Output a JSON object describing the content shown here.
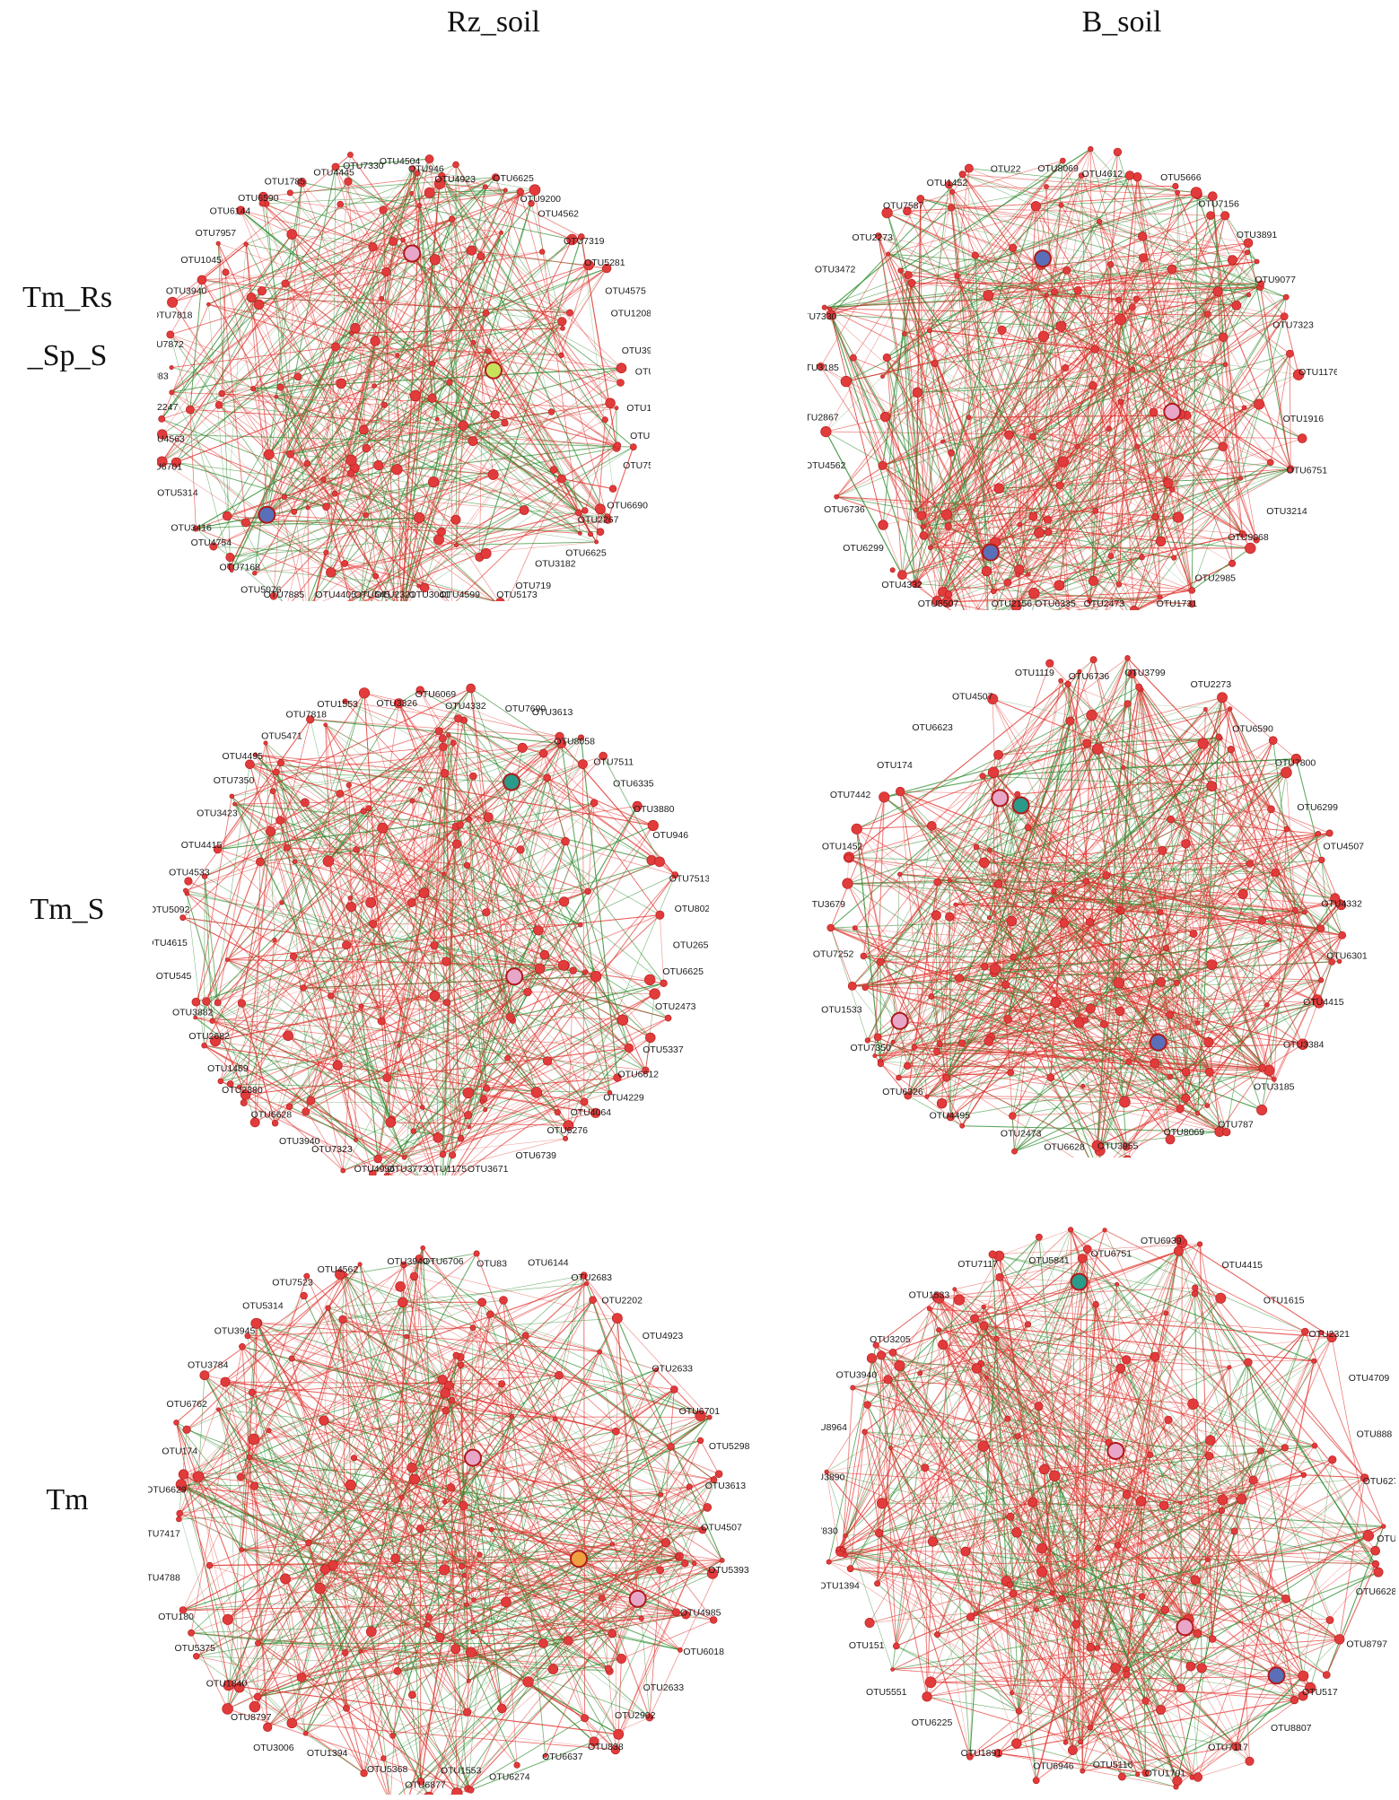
{
  "columns": [
    "Rz_soil",
    "B_soil"
  ],
  "rows": [
    {
      "lines": [
        "Tm_Rs",
        "_Sp_S"
      ]
    },
    {
      "lines": [
        "Tm_S"
      ]
    },
    {
      "lines": [
        "Tm"
      ]
    }
  ],
  "colors": {
    "positive_edge": "#e0302a",
    "negative_edge": "#2e8b2e",
    "node": "#e23b3b",
    "node_stroke": "#b01a1a",
    "hub_blue": "#5a6fb8",
    "hub_pink": "#e8a6c8",
    "hub_teal": "#2a9a8a",
    "hub_lime": "#c6e25a",
    "hub_orange": "#f0a040"
  },
  "panels": [
    {
      "row": 0,
      "col": 0,
      "seed": 11,
      "density": 0.55,
      "hubs": [
        "blue",
        "pink",
        "lime"
      ],
      "labels": [
        "OTU4504",
        "OTU946",
        "OTU4923",
        "OTU6625",
        "OTU9200",
        "OTU4562",
        "OTU7319",
        "OTU5281",
        "OTU4575",
        "OTU1208",
        "OTU3940",
        "OTU1118",
        "OTU1452",
        "OTU3418",
        "OTU7553",
        "OTU6690",
        "OTU2267",
        "OTU6625",
        "OTU3182",
        "OTU719",
        "OTU5173",
        "OTU4599",
        "OTU3041",
        "OTU2321",
        "OTU545",
        "OTU4405",
        "OTU7885",
        "OTU5076",
        "OTU7168",
        "OTU4754",
        "OTU3416",
        "OTU5314",
        "OTU6701",
        "OTU4563",
        "OTU2247",
        "OTU83",
        "OTU7872",
        "OTU7818",
        "OTU3940",
        "OTU1045",
        "OTU7957",
        "OTU6144",
        "OTU6590",
        "OTU1785",
        "OTU4445",
        "OTU7330"
      ]
    },
    {
      "row": 0,
      "col": 1,
      "seed": 23,
      "density": 0.75,
      "hubs": [
        "blue",
        "pink",
        "blue"
      ],
      "labels": [
        "OTU8069",
        "OTU4612",
        "OTU5666",
        "OTU7156",
        "OTU3891",
        "OTU9077",
        "OTU7323",
        "OTU1176",
        "OTU1916",
        "OTU6751",
        "OTU3214",
        "OTU9068",
        "OTU2985",
        "OTU1731",
        "OTU2473",
        "OTU6335",
        "OTU2156",
        "OTU5507",
        "OTU4332",
        "OTU6299",
        "OTU6736",
        "OTU4562",
        "OTU2867",
        "OTU3185",
        "OTU7330",
        "OTU3472",
        "OTU2273",
        "OTU7587",
        "OTU1452",
        "OTU22"
      ]
    },
    {
      "row": 1,
      "col": 0,
      "seed": 37,
      "density": 0.6,
      "hubs": [
        "pink",
        "teal"
      ],
      "labels": [
        "OTU6069",
        "OTU4332",
        "OTU7690",
        "OTU3613",
        "OTU8058",
        "OTU7511",
        "OTU6335",
        "OTU3880",
        "OTU946",
        "OTU7513",
        "OTU8028",
        "OTU2659",
        "OTU6625",
        "OTU2473",
        "OTU5337",
        "OTU6612",
        "OTU4229",
        "OTU4064",
        "OTU6276",
        "OTU6739",
        "OTU3671",
        "OTU1175",
        "OTU3773",
        "OTU4956",
        "OTU7323",
        "OTU3940",
        "OTU6628",
        "OTU2380",
        "OTU1459",
        "OTU2682",
        "OTU3882",
        "OTU545",
        "OTU4615",
        "OTU5092",
        "OTU4533",
        "OTU4415",
        "OTU3423",
        "OTU7350",
        "OTU4495",
        "OTU5471",
        "OTU7818",
        "OTU1553",
        "OTU3326"
      ]
    },
    {
      "row": 1,
      "col": 1,
      "seed": 53,
      "density": 0.8,
      "hubs": [
        "pink",
        "blue",
        "teal",
        "pink"
      ],
      "labels": [
        "OTU6736",
        "OTU3799",
        "OTU2273",
        "OTU6590",
        "OTU7800",
        "OTU6299",
        "OTU4507",
        "OTU4332",
        "OTU6301",
        "OTU4415",
        "OTU3384",
        "OTU3185",
        "OTU787",
        "OTU8069",
        "OTU3955",
        "OTU6628",
        "OTU2473",
        "OTU4495",
        "OTU6326",
        "OTU7350",
        "OTU1533",
        "OTU7252",
        "OTU3679",
        "OTU1452",
        "OTU7442",
        "OTU174",
        "OTU6623",
        "OTU4507",
        "OTU1119"
      ]
    },
    {
      "row": 2,
      "col": 0,
      "seed": 71,
      "density": 0.7,
      "hubs": [
        "orange",
        "pink",
        "pink"
      ],
      "labels": [
        "OTU6706",
        "OTU83",
        "OTU6144",
        "OTU2683",
        "OTU2202",
        "OTU4923",
        "OTU2633",
        "OTU6701",
        "OTU5298",
        "OTU3613",
        "OTU4507",
        "OTU5393",
        "OTU4985",
        "OTU6018",
        "OTU2633",
        "OTU2902",
        "OTU838",
        "OTU6637",
        "OTU6274",
        "OTU1553",
        "OTU6877",
        "OTU5368",
        "OTU1394",
        "OTU3006",
        "OTU8797",
        "OTU1840",
        "OTU5375",
        "OTU180",
        "OTU4788",
        "OTU7417",
        "OTU6629",
        "OTU174",
        "OTU6762",
        "OTU3784",
        "OTU3945",
        "OTU5314",
        "OTU7523",
        "OTU4562",
        "OTU3940"
      ]
    },
    {
      "row": 2,
      "col": 1,
      "seed": 97,
      "density": 0.75,
      "hubs": [
        "teal",
        "blue",
        "pink",
        "pink"
      ],
      "labels": [
        "OTU6751",
        "OTU6939",
        "OTU4415",
        "OTU1615",
        "OTU2321",
        "OTU4709",
        "OTU888",
        "OTU6276",
        "OTU6736",
        "OTU6628",
        "OTU8797",
        "OTU517",
        "OTU8807",
        "OTU7117",
        "OTU1701",
        "OTU5116",
        "OTU6946",
        "OTU1891",
        "OTU6225",
        "OTU5551",
        "OTU151",
        "OTU1394",
        "OTU7830",
        "OTU3890",
        "OTU8964",
        "OTU3940",
        "OTU3205",
        "OTU1533",
        "OTU7117",
        "OTU5841"
      ]
    }
  ]
}
